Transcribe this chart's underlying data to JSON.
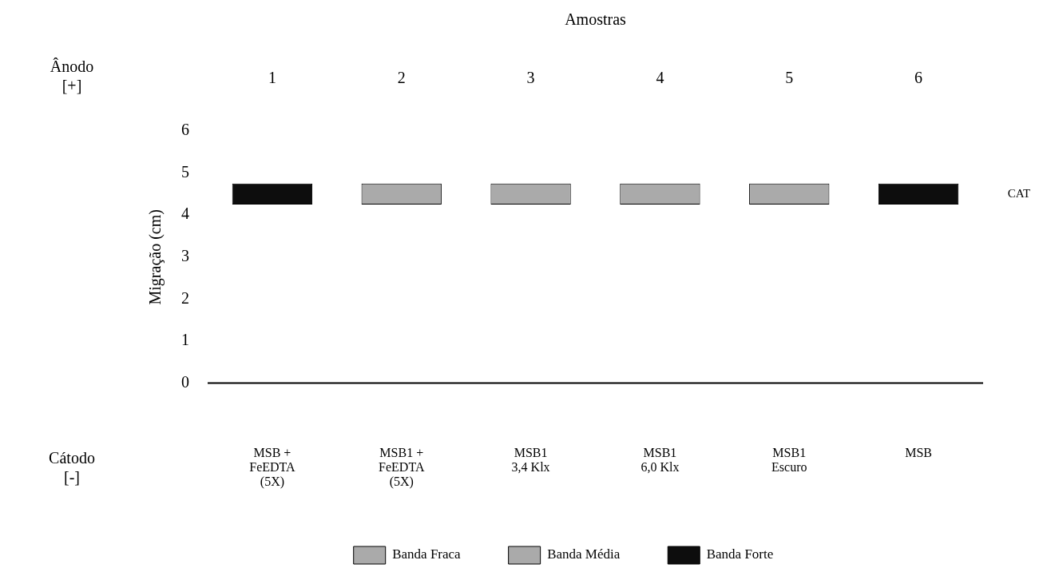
{
  "chart_data": {
    "type": "bar",
    "xlabel": "Amostras",
    "ylabel": "Migração (cm)",
    "categories": [
      "1",
      "2",
      "3",
      "4",
      "5",
      "6"
    ],
    "series": [
      {
        "name": "Banda Fraca",
        "color": "#aaaaaa",
        "values": [
          null,
          null,
          null,
          null,
          null,
          null
        ],
        "base": [
          null,
          null,
          null,
          null,
          null,
          null
        ]
      },
      {
        "name": "Banda Média",
        "color": "#aaaaaa",
        "values": [
          null,
          0.5,
          0.5,
          0.5,
          0.5,
          null
        ],
        "base": [
          null,
          4.25,
          4.25,
          4.25,
          4.25,
          null
        ]
      },
      {
        "name": "Banda Forte",
        "color": "#0d0d0d",
        "values": [
          0.5,
          null,
          null,
          null,
          null,
          0.5
        ],
        "base": [
          4.25,
          null,
          null,
          null,
          null,
          4.25
        ]
      }
    ],
    "ylim": [
      0,
      6
    ],
    "yticks": [
      0,
      1,
      2,
      3,
      4,
      5,
      6
    ],
    "ref_lines": [
      {
        "axis": "y",
        "value": 0
      }
    ],
    "annotations": [
      "Ânodo\n[+]",
      "Cátodo\n[-]",
      "CAT",
      "MSB +\nFeEDTA\n(5X)",
      "MSB1 +\nFeEDTA\n(5X)",
      "MSB1\n3,4 Klx",
      "MSB1\n6,0 Klx",
      "MSB1\nEscuro",
      "MSB"
    ],
    "legend": "bottom"
  }
}
